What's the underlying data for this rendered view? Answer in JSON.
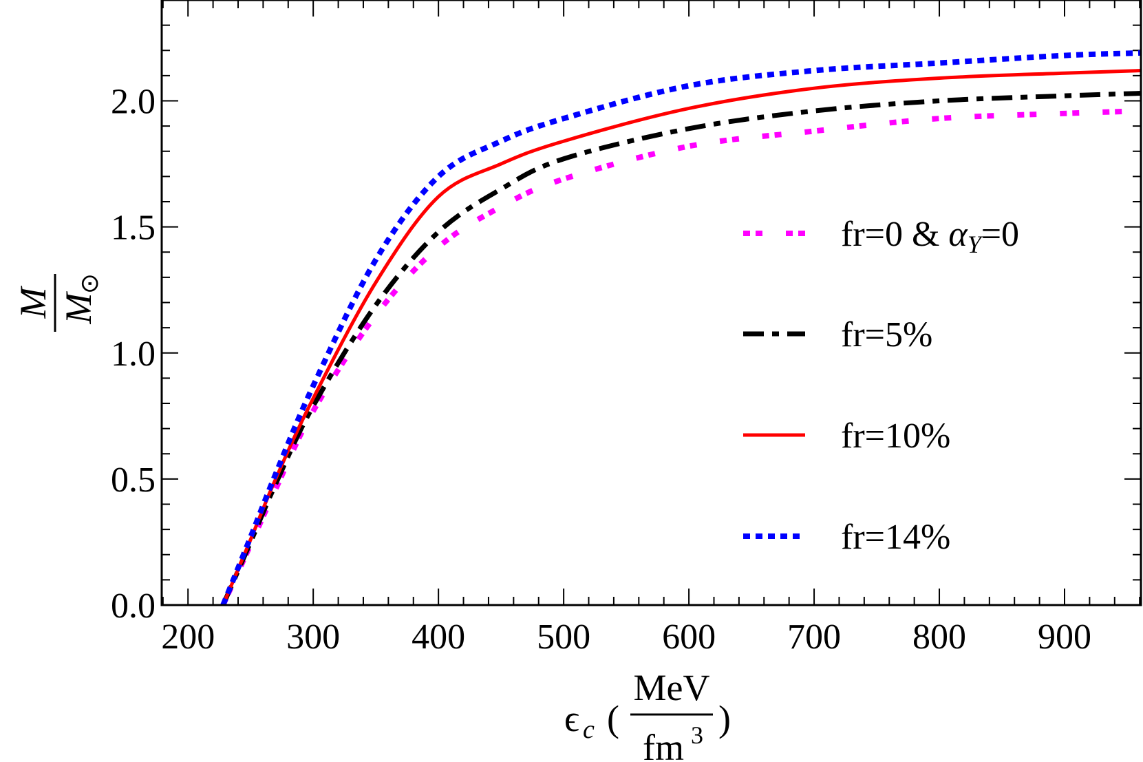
{
  "chart_data": {
    "type": "line",
    "title": "",
    "xlabel": {
      "symbol": "ϵ",
      "subscript": "c",
      "unit_num": "MeV",
      "unit_den": "fm",
      "unit_den_exp": "3"
    },
    "ylabel": {
      "num": "M",
      "den": "M",
      "den_sub": "⊙"
    },
    "xlim": [
      179,
      961
    ],
    "ylim": [
      0,
      2.4
    ],
    "xticks": [
      200,
      300,
      400,
      500,
      600,
      700,
      800,
      900
    ],
    "xtick_labels": [
      "200",
      "300",
      "400",
      "500",
      "600",
      "700",
      "800",
      "900"
    ],
    "yticks": [
      0,
      0.5,
      1.0,
      1.5,
      2.0
    ],
    "ytick_labels": [
      "0.0",
      "0.5",
      "1.0",
      "1.5",
      "2.0"
    ],
    "grid": false,
    "legend_placement": "right",
    "series": [
      {
        "name": "fr=0 & α_Y=0",
        "label_main": "fr=0 & ",
        "label_greek": "α",
        "label_sub": "Y",
        "label_tail": "=0",
        "color": "#ff00ff",
        "style": "dotted-pairs",
        "x": [
          228,
          250,
          270,
          300,
          350,
          400,
          450,
          500,
          600,
          700,
          800,
          900,
          961
        ],
        "y": [
          0.0,
          0.24,
          0.46,
          0.77,
          1.15,
          1.42,
          1.58,
          1.69,
          1.82,
          1.88,
          1.93,
          1.95,
          1.96
        ]
      },
      {
        "name": "fr=5%",
        "color": "#000000",
        "style": "dash-dot",
        "x": [
          228,
          250,
          270,
          300,
          350,
          400,
          450,
          500,
          600,
          700,
          800,
          900,
          961
        ],
        "y": [
          0.0,
          0.25,
          0.48,
          0.79,
          1.19,
          1.48,
          1.65,
          1.77,
          1.89,
          1.96,
          2.0,
          2.02,
          2.03
        ]
      },
      {
        "name": "fr=10%",
        "color": "#ff0000",
        "style": "solid",
        "x": [
          228,
          250,
          270,
          300,
          350,
          400,
          450,
          500,
          600,
          700,
          800,
          900,
          961
        ],
        "y": [
          0.0,
          0.26,
          0.5,
          0.82,
          1.28,
          1.62,
          1.75,
          1.84,
          1.97,
          2.05,
          2.09,
          2.11,
          2.12
        ]
      },
      {
        "name": "fr=14%",
        "color": "#0000ff",
        "style": "dotted",
        "x": [
          228,
          250,
          270,
          300,
          350,
          400,
          450,
          500,
          600,
          700,
          800,
          900,
          961
        ],
        "y": [
          0.0,
          0.27,
          0.52,
          0.87,
          1.37,
          1.7,
          1.84,
          1.93,
          2.06,
          2.12,
          2.15,
          2.18,
          2.19
        ]
      }
    ]
  }
}
